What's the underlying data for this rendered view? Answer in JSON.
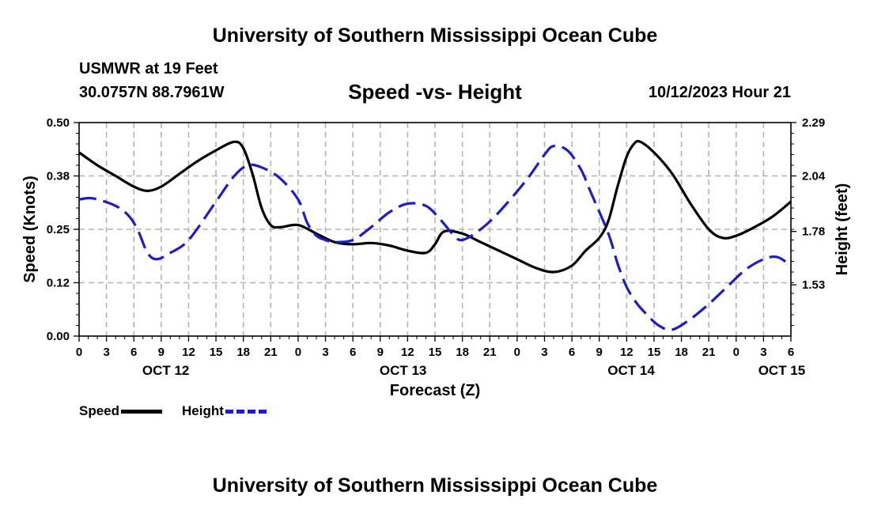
{
  "header": {
    "title": "University of Southern Mississippi Ocean Cube",
    "station": "USMWR at 19 Feet",
    "coords": "30.0757N  88.7961W",
    "subtitle": "Speed -vs- Height",
    "timestamp": "10/12/2023 Hour 21"
  },
  "footer": {
    "title": "University of Southern Mississippi Ocean Cube"
  },
  "legend": {
    "speed_label": "Speed",
    "height_label": "Height"
  },
  "colors": {
    "speed": "#000000",
    "height": "#1c1cc8",
    "grid": "#b4b4b4"
  },
  "chart_data": {
    "type": "line",
    "title": "Speed -vs- Height",
    "xlabel": "Forecast (Z)",
    "ylabel": "Speed (Knots)",
    "y2label": "Height (feet)",
    "xlim": [
      0,
      78
    ],
    "ylim": [
      0,
      0.5
    ],
    "y2lim": [
      1.29,
      2.29
    ],
    "x_ticks": [
      0,
      3,
      6,
      9,
      12,
      15,
      18,
      21,
      24,
      27,
      30,
      33,
      36,
      39,
      42,
      45,
      48,
      51,
      54,
      57,
      60,
      63,
      66,
      69,
      72,
      75,
      78
    ],
    "x_tick_labels": [
      "0",
      "3",
      "6",
      "9",
      "12",
      "15",
      "18",
      "21",
      "0",
      "3",
      "6",
      "9",
      "12",
      "15",
      "18",
      "21",
      "0",
      "3",
      "6",
      "9",
      "12",
      "15",
      "18",
      "21",
      "0",
      "3",
      "6"
    ],
    "day_labels": [
      {
        "x": 9.5,
        "label": "OCT 12"
      },
      {
        "x": 35.5,
        "label": "OCT 13"
      },
      {
        "x": 60.5,
        "label": "OCT 14"
      },
      {
        "x": 77,
        "label": "OCT 15"
      }
    ],
    "y_ticks": [
      0,
      0.125,
      0.25,
      0.375,
      0.5
    ],
    "y_tick_labels": [
      "0.00",
      "0.12",
      "0.25",
      "0.38",
      "0.50"
    ],
    "y2_ticks": [
      1.53,
      1.78,
      2.04,
      2.29
    ],
    "y2_tick_labels": [
      "1.53",
      "1.78",
      "2.04",
      "2.29"
    ],
    "legend_position": "bottom-left",
    "series": [
      {
        "name": "Speed",
        "axis": "left",
        "style": "solid",
        "x": [
          0,
          2,
          4,
          6,
          7.5,
          9,
          11,
          13,
          15,
          17,
          18,
          19,
          20,
          21,
          22,
          24,
          26,
          28,
          30,
          32,
          34,
          36,
          38,
          39,
          40,
          42,
          44,
          46,
          48,
          50,
          52,
          54,
          55.5,
          57,
          58,
          59,
          60,
          60.8,
          61.5,
          63,
          65,
          67,
          69,
          70.5,
          72,
          74,
          76,
          78
        ],
        "values": [
          0.43,
          0.4,
          0.375,
          0.35,
          0.34,
          0.35,
          0.38,
          0.41,
          0.435,
          0.455,
          0.44,
          0.38,
          0.3,
          0.26,
          0.255,
          0.26,
          0.24,
          0.22,
          0.215,
          0.218,
          0.212,
          0.2,
          0.195,
          0.215,
          0.245,
          0.24,
          0.22,
          0.2,
          0.18,
          0.16,
          0.15,
          0.165,
          0.2,
          0.23,
          0.27,
          0.35,
          0.42,
          0.45,
          0.455,
          0.43,
          0.38,
          0.31,
          0.25,
          0.23,
          0.235,
          0.255,
          0.28,
          0.315
        ]
      },
      {
        "name": "Height",
        "axis": "right",
        "style": "dashed",
        "x": [
          0,
          1.5,
          4,
          5.5,
          6.5,
          7.5,
          8.5,
          10,
          12,
          15,
          17,
          18.5,
          20,
          22,
          24,
          25,
          26,
          27,
          28,
          30,
          32,
          34,
          36,
          38,
          39.5,
          41,
          42,
          44,
          46,
          49,
          51,
          52,
          53.5,
          55,
          56,
          58,
          59,
          60,
          61,
          62,
          63.5,
          65,
          67,
          69,
          71,
          73,
          75,
          76.5,
          78
        ],
        "values": [
          1.93,
          1.935,
          1.9,
          1.85,
          1.78,
          1.68,
          1.65,
          1.68,
          1.74,
          1.92,
          2.04,
          2.09,
          2.08,
          2.03,
          1.93,
          1.82,
          1.76,
          1.74,
          1.73,
          1.74,
          1.8,
          1.87,
          1.91,
          1.9,
          1.84,
          1.765,
          1.74,
          1.79,
          1.87,
          2.02,
          2.14,
          2.18,
          2.16,
          2.07,
          1.97,
          1.77,
          1.63,
          1.52,
          1.45,
          1.4,
          1.34,
          1.32,
          1.37,
          1.44,
          1.52,
          1.6,
          1.65,
          1.66,
          1.62
        ]
      }
    ]
  }
}
